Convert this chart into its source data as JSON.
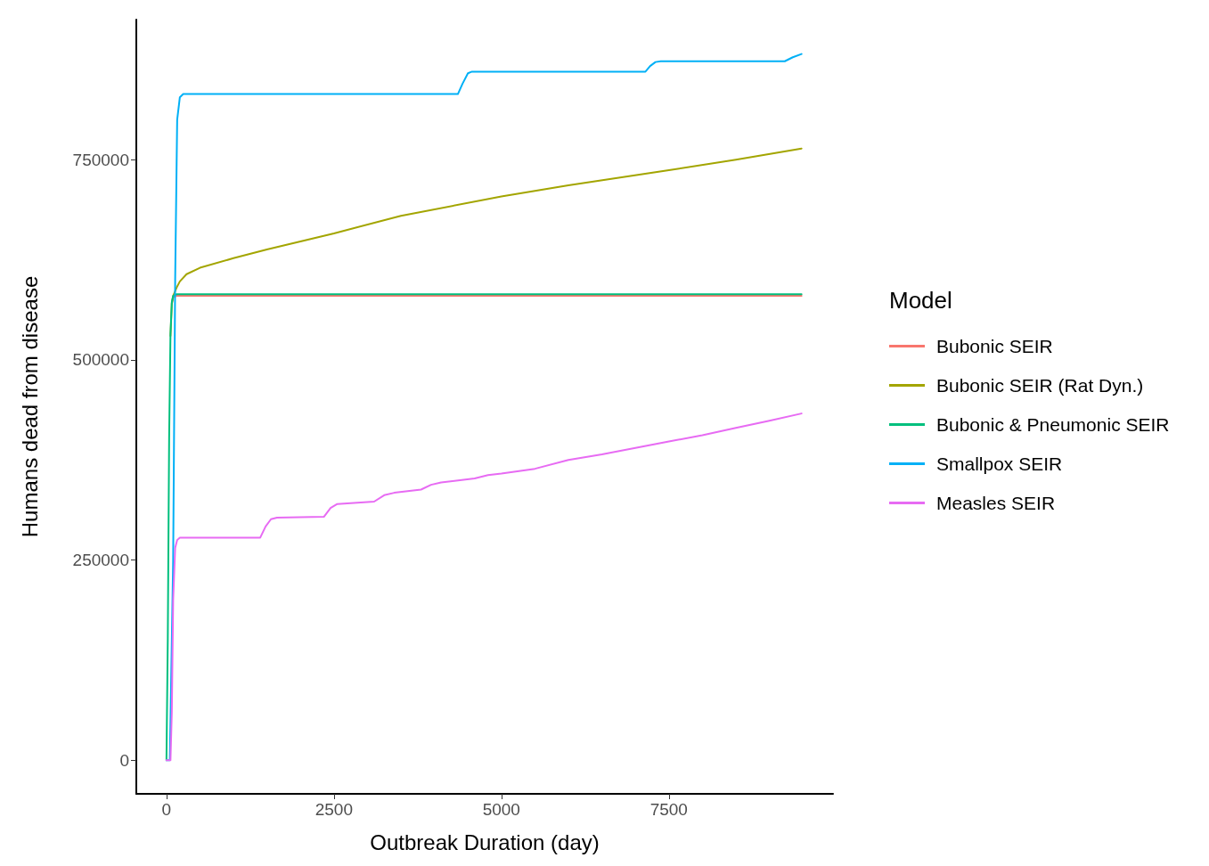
{
  "chart_data": {
    "type": "line",
    "xlabel": "Outbreak Duration (day)",
    "ylabel": "Humans dead from disease",
    "legend_title": "Model",
    "legend": "right",
    "grid": false,
    "marker": "none",
    "line_style": "solid",
    "xlim": [
      -450,
      9950
    ],
    "xticks": [
      0,
      2500,
      5000,
      7500
    ],
    "ylim": [
      -42000,
      925000
    ],
    "yticks": [
      0,
      250000,
      500000,
      750000
    ],
    "series": [
      {
        "name": "Bubonic SEIR",
        "color": "#f8766d",
        "x": [
          80,
          100,
          150,
          300,
          1000,
          5000,
          9480
        ],
        "values": [
          570000,
          578000,
          580000,
          580000,
          580000,
          580000,
          580000
        ]
      },
      {
        "name": "Bubonic SEIR (Rat Dyn.)",
        "color": "#a3a500",
        "x": [
          60,
          80,
          100,
          150,
          200,
          300,
          500,
          1000,
          1500,
          2500,
          3500,
          5000,
          6000,
          7500,
          8500,
          9480
        ],
        "values": [
          530000,
          570000,
          580000,
          590000,
          598000,
          607000,
          615000,
          627000,
          638000,
          658000,
          680000,
          704000,
          718000,
          737000,
          750000,
          764000
        ]
      },
      {
        "name": "Bubonic & Pneumonic SEIR",
        "color": "#00bf7d",
        "x": [
          0,
          20,
          40,
          60,
          80,
          100,
          150,
          300,
          1000,
          5000,
          9480
        ],
        "values": [
          0,
          152000,
          402000,
          532000,
          572000,
          580000,
          582000,
          582000,
          582000,
          582000,
          582000
        ]
      },
      {
        "name": "Smallpox SEIR",
        "color": "#00b0f6",
        "x": [
          0,
          50,
          100,
          130,
          160,
          200,
          250,
          4350,
          4420,
          4500,
          4560,
          7150,
          7220,
          7300,
          7380,
          9230,
          9350,
          9480
        ],
        "values": [
          0,
          0,
          250000,
          600000,
          800000,
          828000,
          832000,
          832000,
          845000,
          858000,
          860000,
          860000,
          867000,
          872000,
          873000,
          873000,
          878000,
          882000
        ]
      },
      {
        "name": "Measles SEIR",
        "color": "#e76bf3",
        "x": [
          0,
          60,
          80,
          100,
          130,
          160,
          200,
          1400,
          1480,
          1560,
          1650,
          2350,
          2450,
          2550,
          3100,
          3250,
          3400,
          3800,
          3950,
          4100,
          4600,
          4800,
          5000,
          5500,
          6000,
          6500,
          7000,
          7500,
          8000,
          8500,
          9000,
          9480
        ],
        "values": [
          0,
          0,
          60000,
          200000,
          265000,
          275000,
          278000,
          278000,
          292000,
          301000,
          303000,
          304000,
          315000,
          320000,
          323000,
          331000,
          334000,
          338000,
          344000,
          347000,
          352000,
          356000,
          358000,
          364000,
          375000,
          382000,
          390000,
          398000,
          406000,
          415000,
          424000,
          433000
        ]
      }
    ]
  }
}
